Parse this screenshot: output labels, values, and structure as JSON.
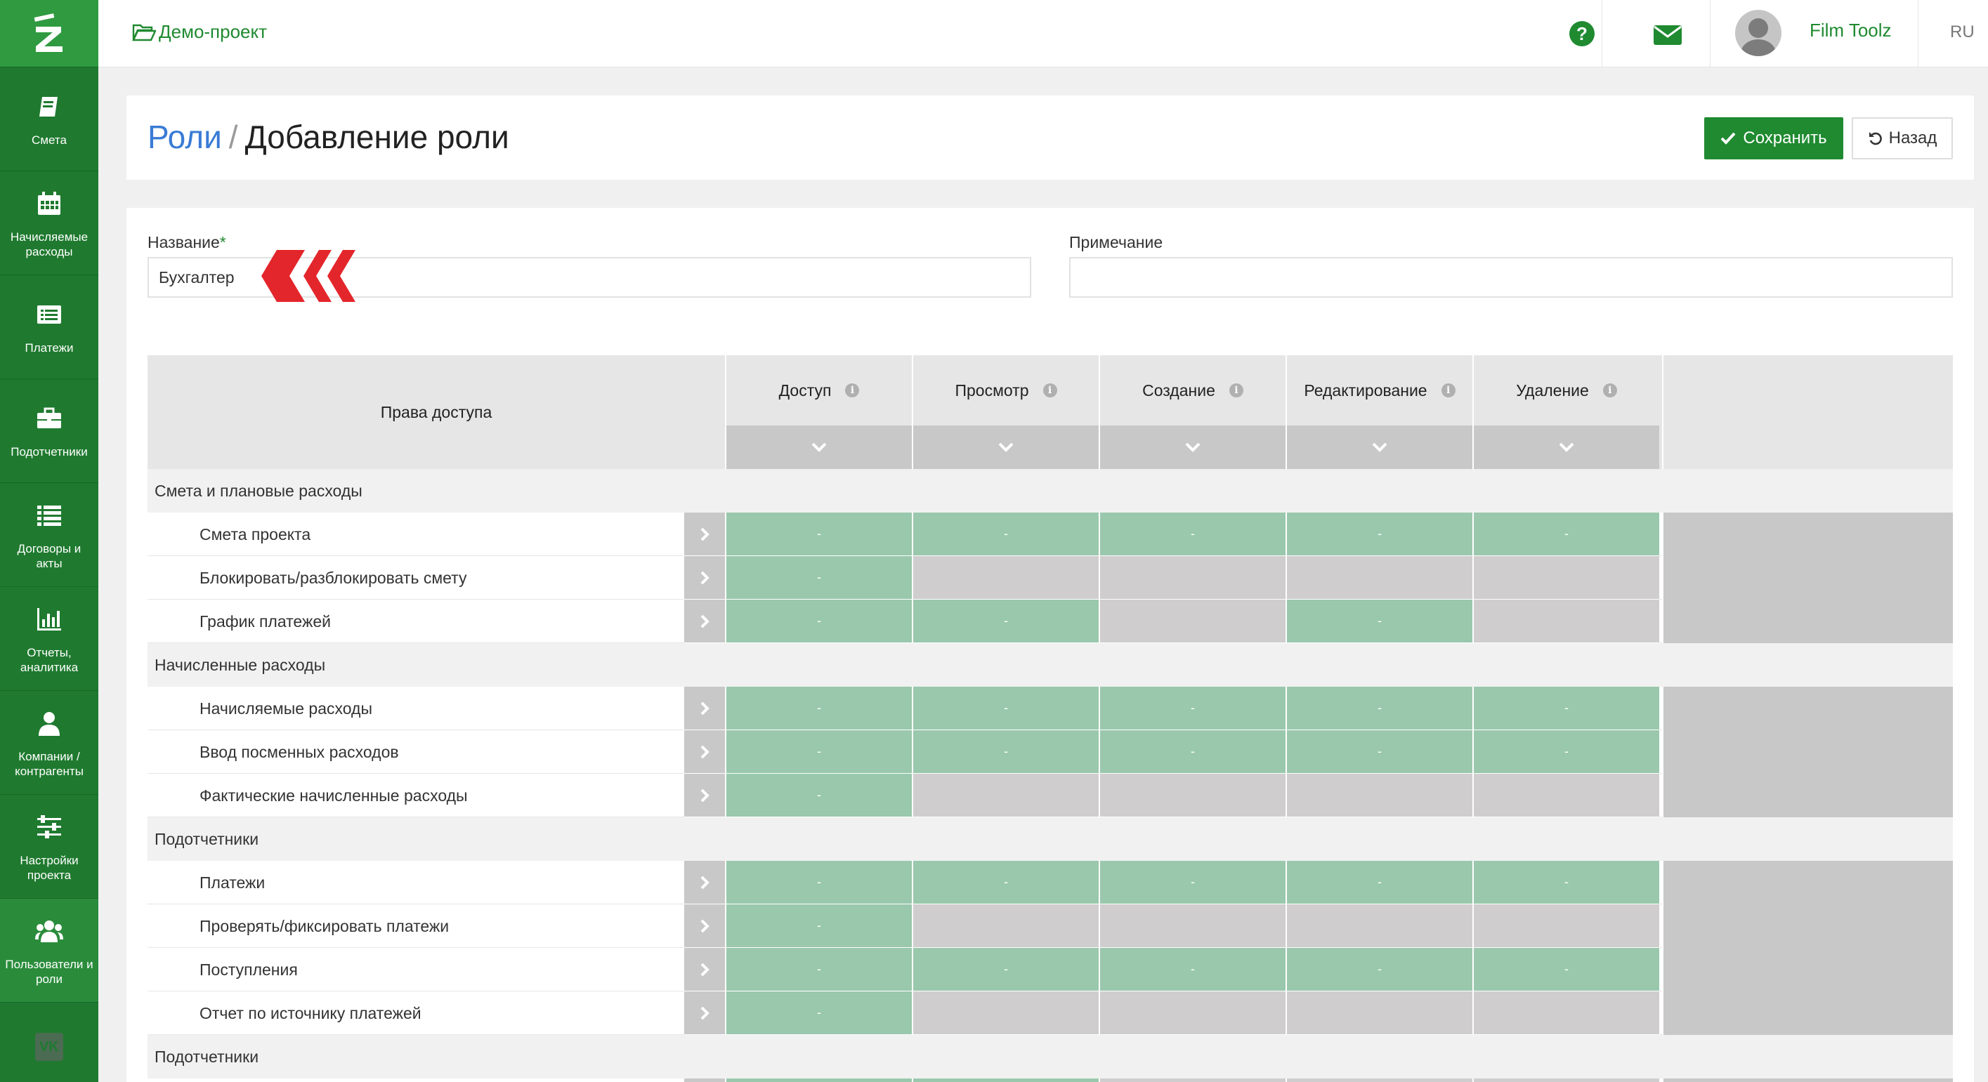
{
  "sidebar": {
    "items": [
      {
        "label": "Смета",
        "icon": "book-icon"
      },
      {
        "label": "Начисляемые расходы",
        "icon": "calendar-icon"
      },
      {
        "label": "Платежи",
        "icon": "list-alt-icon"
      },
      {
        "label": "Подотчетники",
        "icon": "briefcase-icon"
      },
      {
        "label": "Договоры и акты",
        "icon": "list-icon"
      },
      {
        "label": "Отчеты, аналитика",
        "icon": "bar-chart-icon"
      },
      {
        "label": "Компании / контрагенты",
        "icon": "user-icon"
      },
      {
        "label": "Настройки проекта",
        "icon": "sliders-icon"
      },
      {
        "label": "Пользователи и роли",
        "icon": "users-icon"
      }
    ],
    "footer_icon": "vk-icon",
    "footer_text": "VK"
  },
  "topbar": {
    "project_name": "Демо-проект",
    "help_icon_text": "?",
    "user_name": "Film Toolz",
    "language": "RU"
  },
  "header": {
    "breadcrumb_link": "Роли",
    "breadcrumb_separator": "/",
    "title": "Добавление роли",
    "save_label": "Сохранить",
    "back_label": "Назад"
  },
  "form": {
    "name_label": "Название",
    "required_mark": "*",
    "name_value": "Бухгалтер",
    "note_label": "Примечание",
    "note_value": ""
  },
  "table": {
    "rights_header": "Права доступа",
    "info_glyph": "i",
    "columns": [
      "Доступ",
      "Просмотр",
      "Создание",
      "Редактирование",
      "Удаление"
    ],
    "cell_text": "-",
    "groups": [
      {
        "name": "Смета и плановые расходы",
        "rows": [
          {
            "name": "Смета проекта",
            "perms": [
              1,
              1,
              1,
              1,
              1
            ]
          },
          {
            "name": "Блокировать/разблокировать смету",
            "perms": [
              1,
              0,
              0,
              0,
              0
            ]
          },
          {
            "name": "График платежей",
            "perms": [
              1,
              1,
              0,
              1,
              0
            ]
          }
        ]
      },
      {
        "name": "Начисленные расходы",
        "rows": [
          {
            "name": "Начисляемые расходы",
            "perms": [
              1,
              1,
              1,
              1,
              1
            ]
          },
          {
            "name": "Ввод посменных расходов",
            "perms": [
              1,
              1,
              1,
              1,
              1
            ]
          },
          {
            "name": "Фактические начисленные расходы",
            "perms": [
              1,
              0,
              0,
              0,
              0
            ]
          }
        ]
      },
      {
        "name": "Подотчетники",
        "rows": [
          {
            "name": "Платежи",
            "perms": [
              1,
              1,
              1,
              1,
              1
            ]
          },
          {
            "name": "Проверять/фиксировать платежи",
            "perms": [
              1,
              0,
              0,
              0,
              0
            ]
          },
          {
            "name": "Поступления",
            "perms": [
              1,
              1,
              1,
              1,
              1
            ]
          },
          {
            "name": "Отчет по источнику платежей",
            "perms": [
              1,
              0,
              0,
              0,
              0
            ]
          }
        ]
      },
      {
        "name": "Подотчетники",
        "rows": [
          {
            "name": "",
            "perms": [
              1,
              1,
              0,
              0,
              0
            ]
          }
        ]
      }
    ]
  },
  "colors": {
    "sidebar": "#1f7a2f",
    "accent": "#1f8a30",
    "perm_on": "#9ac8ad",
    "perm_off": "#cfcdcd",
    "link": "#3a7bd5",
    "marker": "#e3262b"
  }
}
